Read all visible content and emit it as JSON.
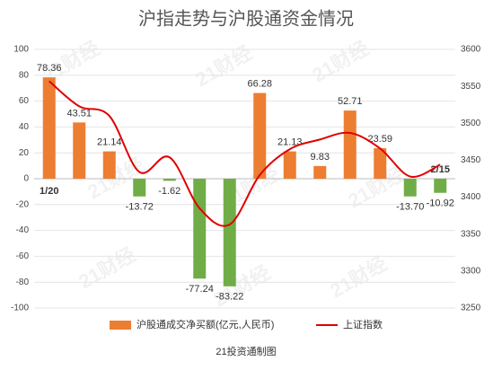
{
  "chart_data": {
    "type": "bar",
    "title": "沪指走势与沪股通资金情况",
    "source": "21投资通制图",
    "watermark": "21财经",
    "categories": [
      "1/20",
      null,
      null,
      null,
      null,
      null,
      null,
      null,
      null,
      null,
      null,
      null,
      null,
      "2/15"
    ],
    "series": [
      {
        "name": "沪股通成交净买额(亿元,人民币)",
        "type": "bar",
        "color": "#ed7d31",
        "negative_color": "#70ad47",
        "values": [
          78.36,
          43.51,
          21.14,
          -13.72,
          -1.62,
          -77.24,
          -83.22,
          66.28,
          21.13,
          9.83,
          52.71,
          23.59,
          -13.7,
          -10.92
        ],
        "value_labels": [
          "78.36",
          "43.51",
          "21.14",
          "-13.72",
          "-1.62",
          "-77.24",
          "-83.22",
          "66.28",
          "21.13",
          "9.83",
          "52.71",
          "23.59",
          "-13.70",
          "-10.92"
        ]
      },
      {
        "name": "上证指数",
        "type": "line",
        "axis": "y2",
        "color": "#e00000",
        "values": [
          3557,
          3523,
          3510,
          3434,
          3454,
          3385,
          3363,
          3430,
          3465,
          3478,
          3487,
          3466,
          3428,
          3444
        ]
      }
    ],
    "ylim": [
      -100,
      100
    ],
    "yticks": [
      -100,
      -80,
      -60,
      -40,
      -20,
      0,
      20,
      40,
      60,
      80,
      100
    ],
    "y2lim": [
      3250,
      3600
    ],
    "y2ticks": [
      3250,
      3300,
      3350,
      3400,
      3450,
      3500,
      3550,
      3600
    ],
    "grid": true,
    "legend": "bottom"
  }
}
